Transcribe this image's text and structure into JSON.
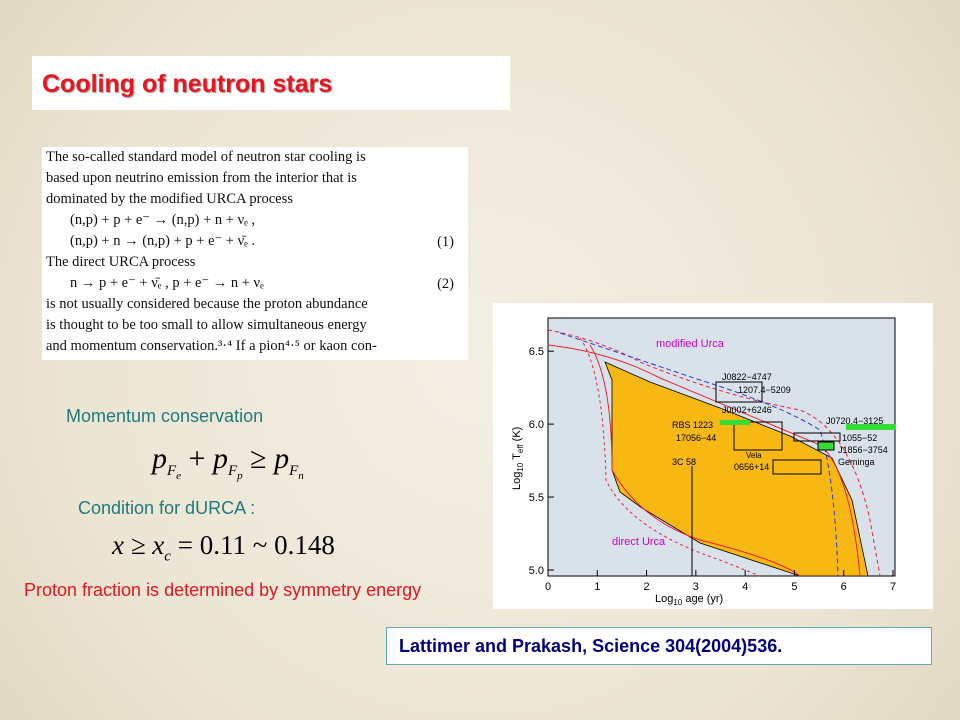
{
  "title": "Cooling of neutron stars",
  "excerpt": {
    "lines": [
      "The so-called standard model of neutron star cooling is",
      "based upon neutrino emission from the interior that is",
      "dominated by the modified URCA process",
      "(n,p) + p + e⁻ → (n,p) + n + νₑ ,",
      "(n,p) + n → (n,p) + p + e⁻ + ν̄ₑ .",
      "The direct URCA process",
      "n → p + e⁻ + ν̄ₑ ,   p + e⁻ → n + νₑ",
      "is not usually considered because the proton abundance",
      "is thought to be too small to allow simultaneous energy",
      "and momentum conservation.³·⁴  If a pion⁴·⁵ or kaon con-"
    ],
    "equation_numbers": [
      "(1)",
      "(2)"
    ]
  },
  "momentum_label": "Momentum conservation",
  "momentum_equation": [
    "p",
    "F",
    "e",
    "+",
    "p",
    "F",
    "p",
    "≥",
    "p",
    "F",
    "n"
  ],
  "condition_label": "Condition for dURCA :",
  "condition_equation": [
    "x ≥ x",
    "c",
    "= 0.11",
    "~",
    "0.148"
  ],
  "proton_note": "Proton fraction is determined by symmetry energy",
  "citation": "Lattimer and Prakash, Science 304(2004)536.",
  "figure": {
    "xlabel": [
      "Log",
      "10",
      " age (yr)"
    ],
    "ylabel": [
      "Log",
      "10",
      " T",
      "eff",
      " (K)"
    ],
    "xlim": [
      0,
      7
    ],
    "ylim": [
      5.0,
      6.7
    ],
    "xticks": [
      0,
      1,
      2,
      3,
      4,
      5,
      6,
      7
    ],
    "yticks": [
      {
        "value": 5.0,
        "label": "5.0"
      },
      {
        "value": 5.5,
        "label": "5.5"
      },
      {
        "value": 6.0,
        "label": "6.0"
      },
      {
        "value": 6.5,
        "label": "6.5"
      }
    ],
    "annotations": [
      "modified Urca",
      "direct Urca"
    ],
    "sources": [
      "J0822−4747",
      "1207.4−5209",
      "J0002+6246",
      "RBS 1223",
      "17056−44",
      "Vela",
      "0656+14",
      "3C 58",
      "J0720.4−3125",
      "1055−52",
      "J1856−3754",
      "Geminga"
    ]
  }
}
